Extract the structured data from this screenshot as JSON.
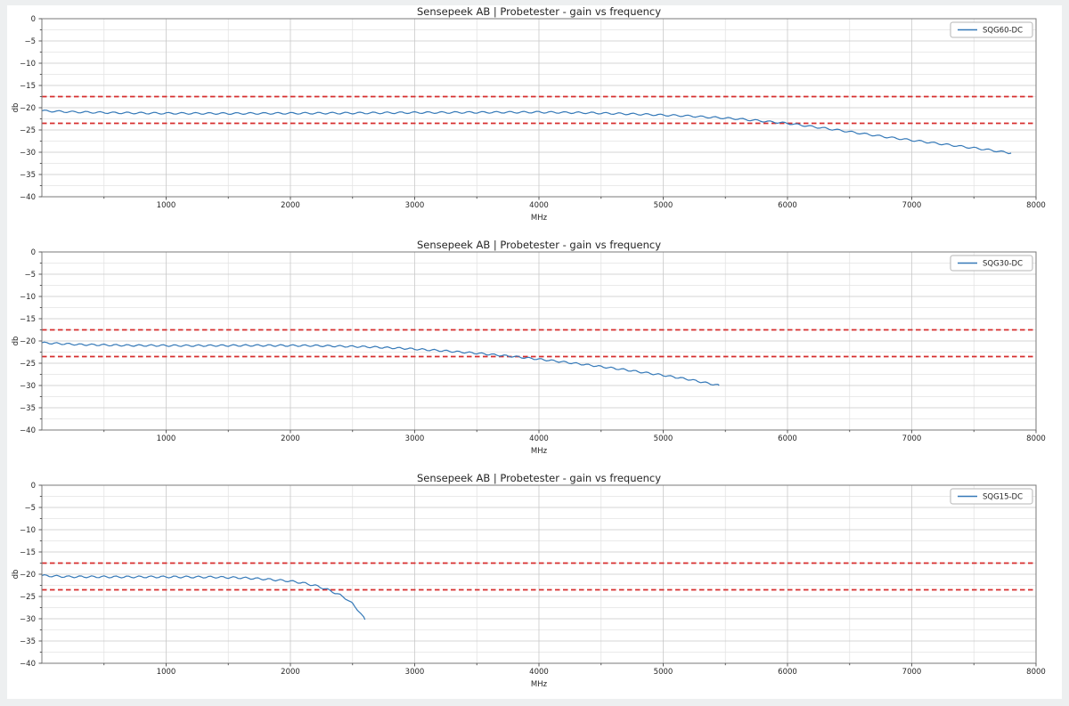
{
  "figure": {
    "page_background": "#edeff0",
    "figure_background": "#ffffff"
  },
  "style": {
    "series_color": "#3579b8",
    "limit_line_color": "#d62e2e",
    "grid_major_color": "#c9c9c9",
    "grid_minor_color": "#e3e3e3",
    "spine_color": "#7a7a7a",
    "tick_color": "#4d4d4d",
    "text_color": "#262626",
    "legend_border_color": "#b5b5b5"
  },
  "chart_data": [
    {
      "type": "line",
      "title": "Sensepeek AB | Probetester - gain vs frequency",
      "xlabel": "MHz",
      "ylabel": "db",
      "xlim": [
        0,
        8000
      ],
      "ylim": [
        -40,
        0
      ],
      "xticks": [
        1000,
        2000,
        3000,
        4000,
        5000,
        6000,
        7000,
        8000
      ],
      "yticks": [
        0,
        -5,
        -10,
        -15,
        -20,
        -25,
        -30,
        -35,
        -40
      ],
      "x_minor_step": 500,
      "y_minor_step": 2.5,
      "grid": "both",
      "legend_position": "upper right",
      "legend": "SQG60-DC",
      "limit_lines_db": [
        -17.5,
        -23.5
      ],
      "series": [
        {
          "name": "SQG60-DC",
          "ripple": {
            "amplitude_db": 0.2,
            "period_mhz": 110
          },
          "points": [
            [
              0,
              -20.7
            ],
            [
              250,
              -20.95
            ],
            [
              600,
              -21.15
            ],
            [
              1000,
              -21.25
            ],
            [
              1500,
              -21.3
            ],
            [
              2000,
              -21.25
            ],
            [
              2500,
              -21.2
            ],
            [
              3000,
              -21.1
            ],
            [
              3500,
              -21.05
            ],
            [
              4000,
              -21.0
            ],
            [
              4400,
              -21.15
            ],
            [
              4800,
              -21.45
            ],
            [
              5200,
              -21.85
            ],
            [
              5600,
              -22.5
            ],
            [
              6000,
              -23.5
            ],
            [
              6400,
              -25.0
            ],
            [
              6800,
              -26.6
            ],
            [
              7200,
              -28.0
            ],
            [
              7600,
              -29.4
            ],
            [
              7800,
              -30.2
            ]
          ]
        }
      ]
    },
    {
      "type": "line",
      "title": "Sensepeek AB | Probetester - gain vs frequency",
      "xlabel": "MHz",
      "ylabel": "db",
      "xlim": [
        0,
        8000
      ],
      "ylim": [
        -40,
        0
      ],
      "xticks": [
        1000,
        2000,
        3000,
        4000,
        5000,
        6000,
        7000,
        8000
      ],
      "yticks": [
        0,
        -5,
        -10,
        -15,
        -20,
        -25,
        -30,
        -35,
        -40
      ],
      "x_minor_step": 500,
      "y_minor_step": 2.5,
      "grid": "both",
      "legend_position": "upper right",
      "legend": "SQG30-DC",
      "limit_lines_db": [
        -17.5,
        -23.5
      ],
      "series": [
        {
          "name": "SQG30-DC",
          "ripple": {
            "amplitude_db": 0.2,
            "period_mhz": 95
          },
          "points": [
            [
              0,
              -20.4
            ],
            [
              300,
              -20.8
            ],
            [
              700,
              -21.0
            ],
            [
              1200,
              -21.05
            ],
            [
              1700,
              -21.0
            ],
            [
              2200,
              -21.05
            ],
            [
              2600,
              -21.3
            ],
            [
              2900,
              -21.65
            ],
            [
              3200,
              -22.15
            ],
            [
              3500,
              -22.75
            ],
            [
              3800,
              -23.5
            ],
            [
              4100,
              -24.4
            ],
            [
              4400,
              -25.4
            ],
            [
              4700,
              -26.5
            ],
            [
              5000,
              -27.7
            ],
            [
              5200,
              -28.6
            ],
            [
              5450,
              -30.0
            ]
          ]
        }
      ]
    },
    {
      "type": "line",
      "title": "Sensepeek AB | Probetester - gain vs frequency",
      "xlabel": "MHz",
      "ylabel": "db",
      "xlim": [
        0,
        8000
      ],
      "ylim": [
        -40,
        0
      ],
      "xticks": [
        1000,
        2000,
        3000,
        4000,
        5000,
        6000,
        7000,
        8000
      ],
      "yticks": [
        0,
        -5,
        -10,
        -15,
        -20,
        -25,
        -30,
        -35,
        -40
      ],
      "x_minor_step": 500,
      "y_minor_step": 2.5,
      "grid": "both",
      "legend_position": "upper right",
      "legend": "SQG15-DC",
      "limit_lines_db": [
        -17.5,
        -23.5
      ],
      "series": [
        {
          "name": "SQG15-DC",
          "ripple": {
            "amplitude_db": 0.22,
            "period_mhz": 95
          },
          "points": [
            [
              0,
              -20.3
            ],
            [
              200,
              -20.55
            ],
            [
              600,
              -20.6
            ],
            [
              1000,
              -20.6
            ],
            [
              1400,
              -20.65
            ],
            [
              1600,
              -20.8
            ],
            [
              1800,
              -21.1
            ],
            [
              2000,
              -21.55
            ],
            [
              2100,
              -21.95
            ],
            [
              2200,
              -22.55
            ],
            [
              2300,
              -23.45
            ],
            [
              2400,
              -24.7
            ],
            [
              2450,
              -25.5
            ],
            [
              2500,
              -26.7
            ],
            [
              2550,
              -28.2
            ],
            [
              2600,
              -30.2
            ]
          ]
        }
      ]
    }
  ]
}
